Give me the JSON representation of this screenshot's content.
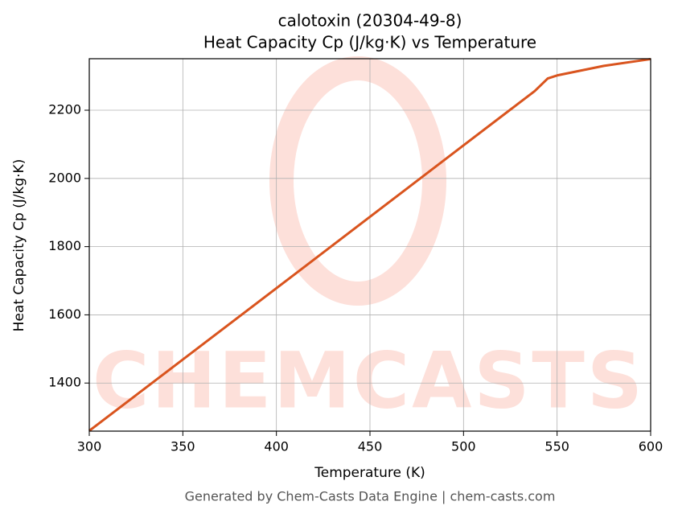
{
  "chart_data": {
    "type": "line",
    "title": "calotoxin (20304-49-8)",
    "subtitle": "Heat Capacity Cp (J/kg·K) vs Temperature",
    "x_label": "Temperature (K)",
    "y_label": "Heat Capacity Cp (J/kg·K)",
    "footer": "Generated by Chem-Casts Data Engine | chem-casts.com",
    "watermark": "CHEMCASTS",
    "x": [
      300,
      400,
      500,
      538,
      545,
      550,
      575,
      600
    ],
    "series": [
      {
        "name": "Heat Capacity Cp",
        "color": "#d9541e",
        "values": [
          1260,
          1678,
          2097,
          2256,
          2293,
          2302,
          2330,
          2350
        ]
      }
    ],
    "xlim": [
      300,
      600
    ],
    "ylim": [
      1259,
      2351
    ],
    "xticks": [
      300,
      350,
      400,
      450,
      500,
      550,
      600
    ],
    "yticks": [
      1400,
      1600,
      1800,
      2000,
      2200
    ],
    "grid": true
  }
}
